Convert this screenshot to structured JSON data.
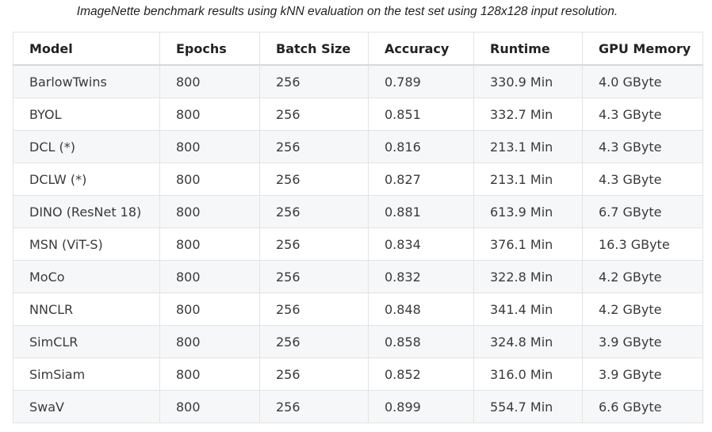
{
  "caption": "ImageNette benchmark results using kNN evaluation on the test set using 128x128 input resolution.",
  "table": {
    "headers": [
      "Model",
      "Epochs",
      "Batch Size",
      "Accuracy",
      "Runtime",
      "GPU Memory"
    ],
    "rows": [
      [
        "BarlowTwins",
        "800",
        "256",
        "0.789",
        "330.9 Min",
        "4.0 GByte"
      ],
      [
        "BYOL",
        "800",
        "256",
        "0.851",
        "332.7 Min",
        "4.3 GByte"
      ],
      [
        "DCL (*)",
        "800",
        "256",
        "0.816",
        "213.1 Min",
        "4.3 GByte"
      ],
      [
        "DCLW (*)",
        "800",
        "256",
        "0.827",
        "213.1 Min",
        "4.3 GByte"
      ],
      [
        "DINO (ResNet 18)",
        "800",
        "256",
        "0.881",
        "613.9 Min",
        "6.7 GByte"
      ],
      [
        "MSN (ViT-S)",
        "800",
        "256",
        "0.834",
        "376.1 Min",
        "16.3 GByte"
      ],
      [
        "MoCo",
        "800",
        "256",
        "0.832",
        "322.8 Min",
        "4.2 GByte"
      ],
      [
        "NNCLR",
        "800",
        "256",
        "0.848",
        "341.4 Min",
        "4.2 GByte"
      ],
      [
        "SimCLR",
        "800",
        "256",
        "0.858",
        "324.8 Min",
        "3.9 GByte"
      ],
      [
        "SimSiam",
        "800",
        "256",
        "0.852",
        "316.0 Min",
        "3.9 GByte"
      ],
      [
        "SwaV",
        "800",
        "256",
        "0.899",
        "554.7 Min",
        "6.6 GByte"
      ]
    ]
  }
}
